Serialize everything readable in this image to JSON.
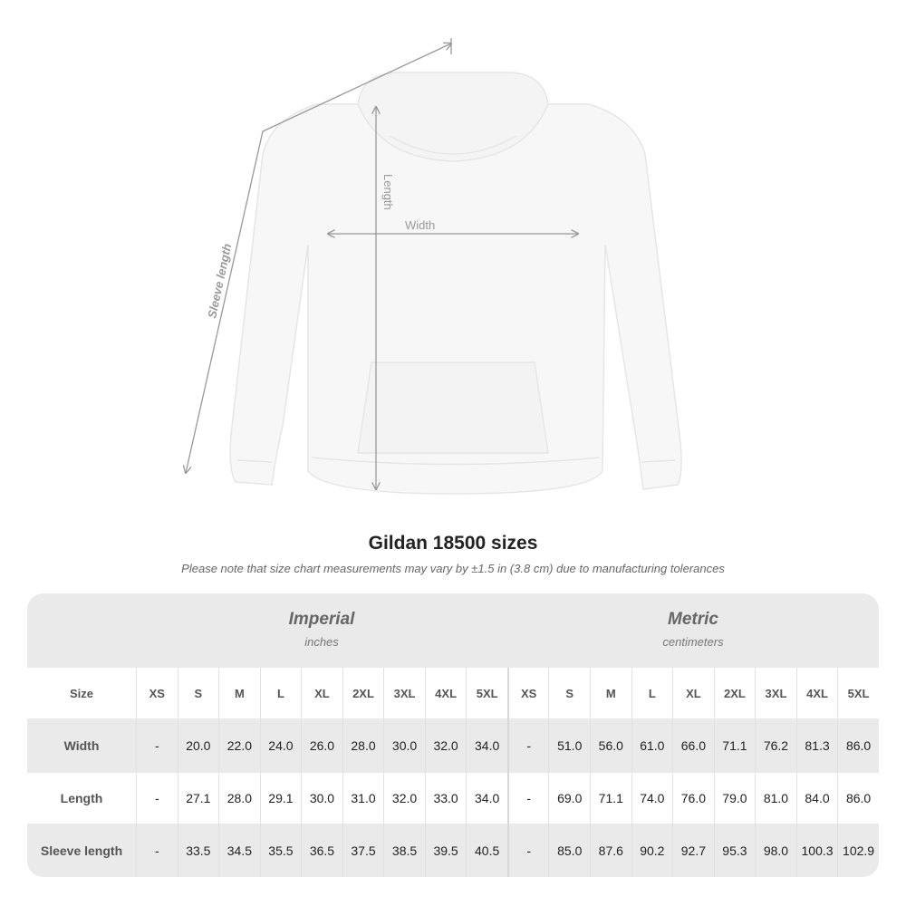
{
  "illustration": {
    "labels": {
      "sleeve": "Sleeve length",
      "length": "Length",
      "width": "Width"
    },
    "garment_color": "#f7f7f7"
  },
  "title": "Gildan 18500 sizes",
  "note": "Please note that size chart measurements may vary by ±1.5 in (3.8 cm) due to manufacturing tolerances",
  "table": {
    "imperial": {
      "label": "Imperial",
      "unit": "inches"
    },
    "metric": {
      "label": "Metric",
      "unit": "centimeters"
    },
    "size_label": "Size",
    "sizes": [
      "XS",
      "S",
      "M",
      "L",
      "XL",
      "2XL",
      "3XL",
      "4XL",
      "5XL"
    ],
    "rows": [
      {
        "label": "Width",
        "imperial": [
          "-",
          "20.0",
          "22.0",
          "24.0",
          "26.0",
          "28.0",
          "30.0",
          "32.0",
          "34.0"
        ],
        "metric": [
          "-",
          "51.0",
          "56.0",
          "61.0",
          "66.0",
          "71.1",
          "76.2",
          "81.3",
          "86.0"
        ]
      },
      {
        "label": "Length",
        "imperial": [
          "-",
          "27.1",
          "28.0",
          "29.1",
          "30.0",
          "31.0",
          "32.0",
          "33.0",
          "34.0"
        ],
        "metric": [
          "-",
          "69.0",
          "71.1",
          "74.0",
          "76.0",
          "79.0",
          "81.0",
          "84.0",
          "86.0"
        ]
      },
      {
        "label": "Sleeve length",
        "imperial": [
          "-",
          "33.5",
          "34.5",
          "35.5",
          "36.5",
          "37.5",
          "38.5",
          "39.5",
          "40.5"
        ],
        "metric": [
          "-",
          "85.0",
          "87.6",
          "90.2",
          "92.7",
          "95.3",
          "98.0",
          "100.3",
          "102.9"
        ]
      }
    ]
  }
}
